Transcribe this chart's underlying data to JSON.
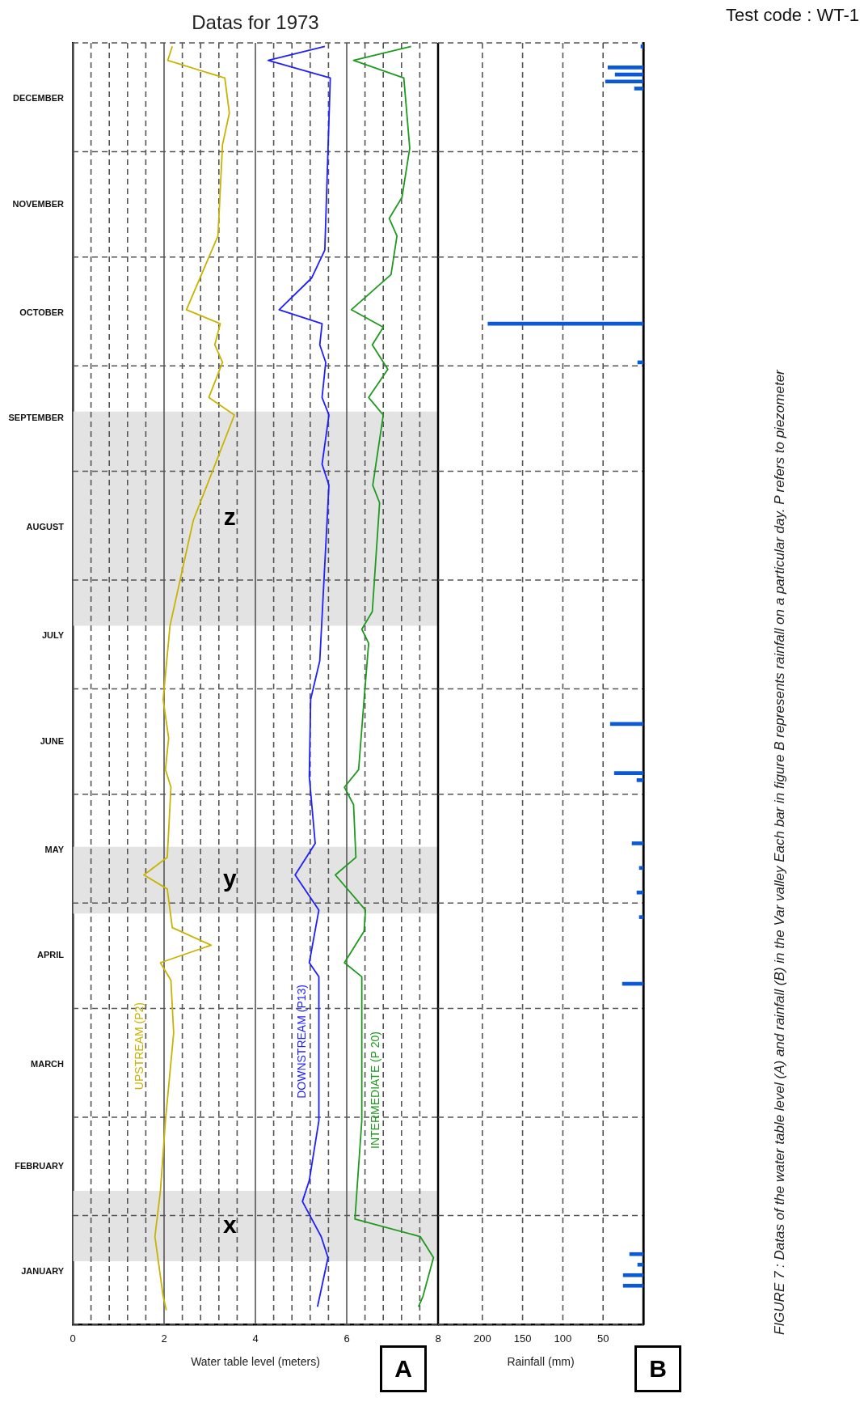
{
  "chart_data": [
    {
      "type": "line",
      "orientation": "horizontal",
      "title": "Datas for 1973",
      "xlabel": "Water table level (meters)",
      "ylim": [
        "1973-01-01",
        "1974-01-01"
      ],
      "xlim": [
        0,
        8
      ],
      "yticks": [
        {
          "value": "1973-01-01",
          "label": null
        },
        {
          "value": "1973-01-16",
          "label": "JANUARY"
        },
        {
          "value": "1973-02-01",
          "label": null
        },
        {
          "value": "1973-02-15",
          "label": "FEBRUARY"
        },
        {
          "value": "1973-03-01",
          "label": null
        },
        {
          "value": "1973-03-16",
          "label": "MARCH"
        },
        {
          "value": "1973-04-01",
          "label": null
        },
        {
          "value": "1973-04-16",
          "label": "APRIL"
        },
        {
          "value": "1973-05-01",
          "label": null
        },
        {
          "value": "1973-05-16",
          "label": "MAY"
        },
        {
          "value": "1973-06-01",
          "label": null
        },
        {
          "value": "1973-06-16",
          "label": "JUNE"
        },
        {
          "value": "1973-07-01",
          "label": null
        },
        {
          "value": "1973-07-16",
          "label": "JULY"
        },
        {
          "value": "1973-08-01",
          "label": null
        },
        {
          "value": "1973-08-16",
          "label": "AUGUST"
        },
        {
          "value": "1973-09-01",
          "label": null
        },
        {
          "value": "1973-09-16",
          "label": "SEPTEMBER"
        },
        {
          "value": "1973-10-01",
          "label": null
        },
        {
          "value": "1973-10-16",
          "label": "OCTOBER"
        },
        {
          "value": "1973-11-01",
          "label": null
        },
        {
          "value": "1973-11-16",
          "label": "NOVEMBER"
        },
        {
          "value": "1973-12-01",
          "label": null
        },
        {
          "value": "1973-12-16",
          "label": "DECEMBER"
        },
        {
          "value": "1974-01-01",
          "label": null
        }
      ],
      "xticks": [
        0,
        {
          "value": 0.4,
          "label": null
        },
        {
          "value": 0.8,
          "label": null
        },
        {
          "value": 1.2,
          "label": null
        },
        {
          "value": 1.6,
          "label": null
        },
        2,
        {
          "value": 2.4,
          "label": null
        },
        {
          "value": 2.8,
          "label": null
        },
        {
          "value": 3.2,
          "label": null
        },
        {
          "value": 3.6,
          "label": null
        },
        4,
        {
          "value": 4.4,
          "label": null
        },
        {
          "value": 4.8,
          "label": null
        },
        {
          "value": 5.2,
          "label": null
        },
        {
          "value": 5.6,
          "label": null
        },
        6,
        {
          "value": 6.4,
          "label": null
        },
        {
          "value": 6.8,
          "label": null
        },
        {
          "value": 7.2,
          "label": null
        },
        {
          "value": 7.6,
          "label": null
        },
        8
      ],
      "grid": true,
      "bands": [
        {
          "axis": "y",
          "from": "1973-01-19",
          "to": "1973-02-08",
          "label": "x",
          "color": "#e3e3e3"
        },
        {
          "axis": "y",
          "from": "1973-04-28",
          "to": "1973-05-17",
          "label": "y",
          "color": "#e3e3e3"
        },
        {
          "axis": "y",
          "from": "1973-07-19",
          "to": "1973-09-18",
          "label": "z",
          "color": "#e3e3e3"
        }
      ],
      "annotations": [
        "A"
      ],
      "series": [
        {
          "name": "UPSTREAM (P2)",
          "color": "#c8b400",
          "x": [
            "1973-01-05",
            "1973-01-09",
            "1973-01-26",
            "1973-02-08",
            "1973-02-28",
            "1973-03-25",
            "1973-04-09",
            "1973-04-14",
            "1973-04-19",
            "1973-04-24",
            "1973-05-05",
            "1973-05-09",
            "1973-05-14",
            "1973-06-03",
            "1973-06-08",
            "1973-06-17",
            "1973-06-28",
            "1973-07-19",
            "1973-08-18",
            "1973-09-17",
            "1973-09-22",
            "1973-10-02",
            "1973-10-07",
            "1973-10-13",
            "1973-10-17",
            "1973-11-07",
            "1973-12-03",
            "1973-12-12",
            "1973-12-22",
            "1973-12-27",
            "1973-12-31"
          ],
          "values": [
            2.05,
            1.98,
            1.8,
            1.92,
            2.03,
            2.21,
            2.15,
            1.92,
            3.03,
            2.18,
            2.07,
            1.56,
            2.07,
            2.15,
            2.03,
            2.1,
            1.98,
            2.13,
            2.64,
            3.54,
            2.98,
            3.28,
            3.11,
            3.23,
            2.49,
            3.18,
            3.28,
            3.43,
            3.33,
            2.08,
            2.18
          ]
        },
        {
          "name": "DOWNSTREAM (P13)",
          "color": "#1f1fff",
          "x": [
            "1973-01-06",
            "1973-01-20",
            "1973-01-26",
            "1973-02-05",
            "1973-02-11",
            "1973-02-28",
            "1973-04-10",
            "1973-04-14",
            "1973-04-29",
            "1973-05-09",
            "1973-05-18",
            "1973-06-06",
            "1973-06-28",
            "1973-07-09",
            "1973-08-28",
            "1973-09-03",
            "1973-09-17",
            "1973-09-22",
            "1973-10-02",
            "1973-10-07",
            "1973-10-13",
            "1973-10-17",
            "1973-10-26",
            "1973-11-03",
            "1973-12-22",
            "1973-12-27",
            "1973-12-31"
          ],
          "values": [
            5.36,
            5.59,
            5.44,
            5.03,
            5.18,
            5.39,
            5.39,
            5.18,
            5.39,
            4.87,
            5.31,
            5.18,
            5.21,
            5.41,
            5.61,
            5.46,
            5.61,
            5.46,
            5.54,
            5.41,
            5.46,
            4.52,
            5.23,
            5.52,
            5.64,
            4.28,
            5.52
          ]
        },
        {
          "name": "INTERMEDIATE (P 20)",
          "color": "#1e9a1e",
          "x": [
            "1973-01-06",
            "1973-01-09",
            "1973-01-20",
            "1973-01-26",
            "1973-01-31",
            "1973-02-28",
            "1973-04-10",
            "1973-04-14",
            "1973-04-23",
            "1973-04-29",
            "1973-05-09",
            "1973-05-14",
            "1973-05-29",
            "1973-06-03",
            "1973-06-08",
            "1973-06-28",
            "1973-07-14",
            "1973-07-18",
            "1973-07-23",
            "1973-08-23",
            "1973-08-28",
            "1973-09-17",
            "1973-09-22",
            "1973-09-30",
            "1973-10-07",
            "1973-10-12",
            "1973-10-17",
            "1973-10-27",
            "1973-11-07",
            "1973-11-12",
            "1973-11-18",
            "1973-12-02",
            "1973-12-22",
            "1973-12-27",
            "1973-12-31"
          ],
          "values": [
            7.57,
            7.67,
            7.9,
            7.61,
            6.18,
            6.33,
            6.33,
            5.95,
            6.38,
            6.41,
            5.75,
            6.2,
            6.15,
            5.95,
            6.26,
            6.38,
            6.48,
            6.33,
            6.56,
            6.72,
            6.57,
            6.8,
            6.48,
            6.9,
            6.56,
            6.8,
            6.1,
            6.97,
            7.1,
            6.93,
            7.21,
            7.38,
            7.25,
            6.15,
            7.41
          ]
        }
      ]
    },
    {
      "type": "bar",
      "orientation": "horizontal",
      "xlabel": "Rainfall (mm)",
      "ylim": [
        "1973-01-01",
        "1974-01-01"
      ],
      "xlim": [
        255,
        0
      ],
      "yticks": [
        {
          "value": "1973-01-01",
          "label": null
        },
        {
          "value": "1973-02-01",
          "label": null
        },
        {
          "value": "1973-03-01",
          "label": null
        },
        {
          "value": "1973-04-01",
          "label": null
        },
        {
          "value": "1973-05-01",
          "label": null
        },
        {
          "value": "1973-06-01",
          "label": null
        },
        {
          "value": "1973-07-01",
          "label": null
        },
        {
          "value": "1973-08-01",
          "label": null
        },
        {
          "value": "1973-09-01",
          "label": null
        },
        {
          "value": "1973-10-01",
          "label": null
        },
        {
          "value": "1973-11-01",
          "label": null
        },
        {
          "value": "1973-12-01",
          "label": null
        },
        {
          "value": "1974-01-01",
          "label": null
        }
      ],
      "xticks": [
        200,
        150,
        100,
        50
      ],
      "grid": true,
      "tick_labels": "x",
      "annotations": [
        "B",
        "Test code : WT-1",
        "FIGURE 7 : Datas of the water table level (A) and rainfall (B) in the Var valley Each bar in figure B represents rainfall on a particular day. P refers to piezometer"
      ],
      "series": [
        {
          "color": "#0a5ad8",
          "x": [
            "1973-01-12",
            "1973-01-15",
            "1973-01-18",
            "1973-01-21",
            "1973-04-08",
            "1973-04-27",
            "1973-05-04",
            "1973-05-11",
            "1973-05-18",
            "1973-06-05",
            "1973-06-07",
            "1973-06-21",
            "1973-10-02",
            "1973-10-13",
            "1973-12-19",
            "1973-12-21",
            "1973-12-23",
            "1973-12-25",
            "1973-12-31"
          ],
          "values": [
            25,
            25,
            7,
            17,
            26,
            5,
            8,
            5,
            14,
            8,
            36,
            41,
            7,
            193,
            11,
            47,
            35,
            44,
            3
          ]
        }
      ]
    }
  ]
}
